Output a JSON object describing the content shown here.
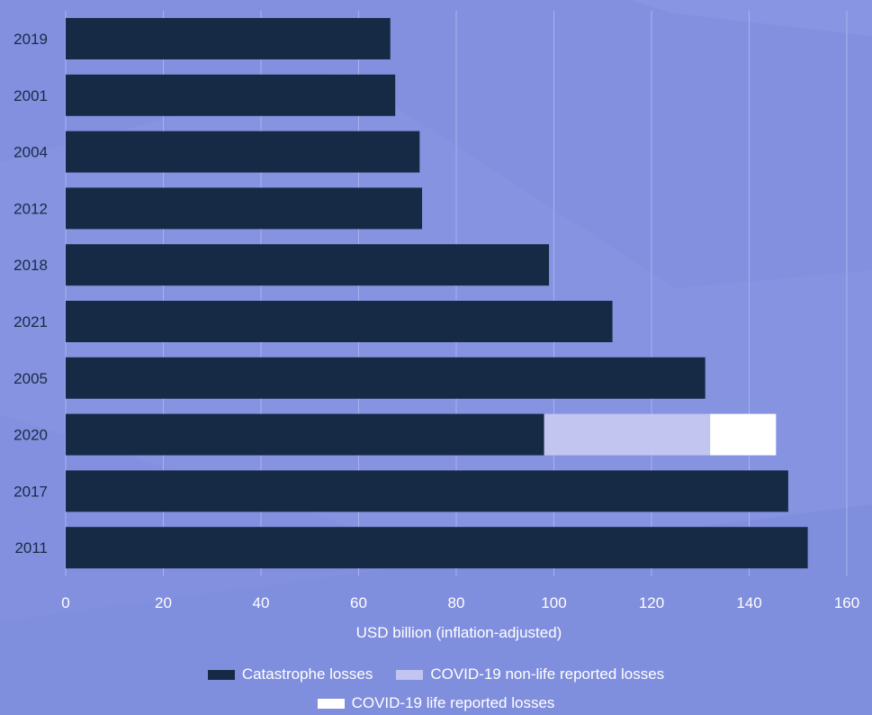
{
  "chart_data": {
    "type": "bar",
    "orientation": "horizontal",
    "stacked": true,
    "categories": [
      "2019",
      "2001",
      "2004",
      "2012",
      "2018",
      "2021",
      "2005",
      "2020",
      "2017",
      "2011"
    ],
    "series": [
      {
        "name": "Catastrophe losses",
        "color": "#172a45",
        "values": [
          66.5,
          67.5,
          72.5,
          73,
          99,
          112,
          131,
          98,
          148,
          152
        ]
      },
      {
        "name": "COVID-19 non-life reported losses",
        "color": "#c2c5ef",
        "values": [
          0,
          0,
          0,
          0,
          0,
          0,
          0,
          34,
          0,
          0
        ]
      },
      {
        "name": "COVID-19 life reported losses",
        "color": "#ffffff",
        "values": [
          0,
          0,
          0,
          0,
          0,
          0,
          0,
          13.5,
          0,
          0
        ]
      }
    ],
    "xlim": [
      0,
      160
    ],
    "xticks": [
      0,
      20,
      40,
      60,
      80,
      100,
      120,
      140,
      160
    ],
    "xlabel": "USD billion (inflation-adjusted)",
    "grid": "vertical",
    "legend_position": "bottom-center"
  },
  "colors": {
    "background": "#8290df",
    "text": "#1a2a45",
    "tick_text": "#ffffff"
  }
}
